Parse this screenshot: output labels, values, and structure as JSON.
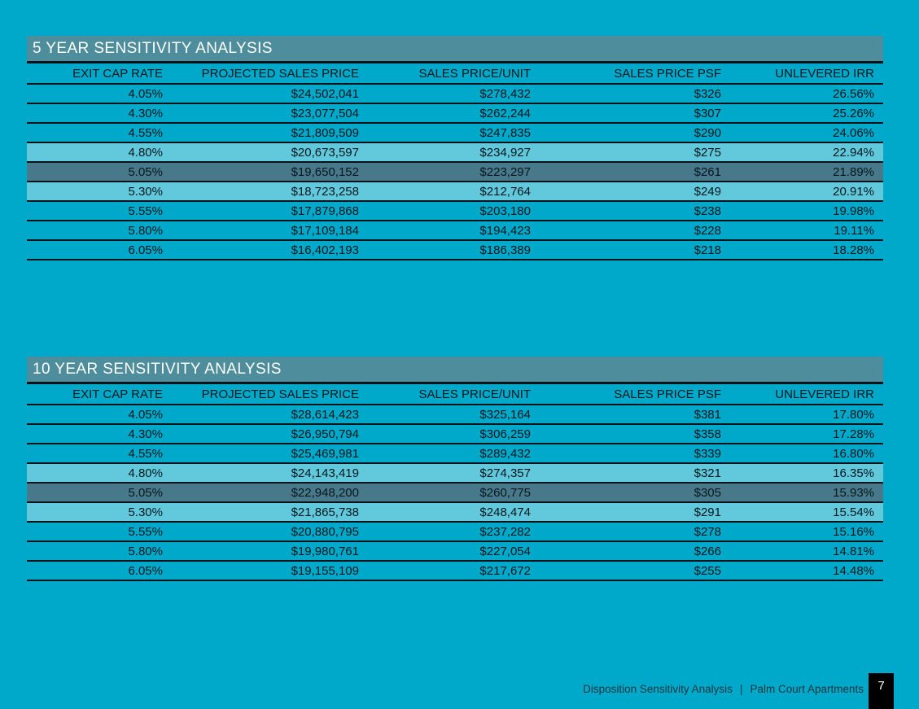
{
  "colors": {
    "background": "#00A9C9",
    "title_band": "#4E8E9C",
    "row_highlight_light": "#62C9DC",
    "row_highlight_dark": "#48798A",
    "line": "#06141A",
    "title_text": "#FFFFFF",
    "cell_text": "#04161D",
    "footer_text": "#163540",
    "page_badge_bg": "#000000",
    "page_badge_text": "#FFFFFF"
  },
  "columns": [
    "EXIT CAP RATE",
    "PROJECTED SALES PRICE",
    "SALES PRICE/UNIT",
    "SALES PRICE PSF",
    "UNLEVERED IRR"
  ],
  "tables": [
    {
      "title": "5 YEAR SENSITIVITY ANALYSIS",
      "rows": [
        {
          "cells": [
            "4.05%",
            "$24,502,041",
            "$278,432",
            "$326",
            "26.56%"
          ],
          "highlight": "none"
        },
        {
          "cells": [
            "4.30%",
            "$23,077,504",
            "$262,244",
            "$307",
            "25.26%"
          ],
          "highlight": "none"
        },
        {
          "cells": [
            "4.55%",
            "$21,809,509",
            "$247,835",
            "$290",
            "24.06%"
          ],
          "highlight": "none"
        },
        {
          "cells": [
            "4.80%",
            "$20,673,597",
            "$234,927",
            "$275",
            "22.94%"
          ],
          "highlight": "light"
        },
        {
          "cells": [
            "5.05%",
            "$19,650,152",
            "$223,297",
            "$261",
            "21.89%"
          ],
          "highlight": "dark"
        },
        {
          "cells": [
            "5.30%",
            "$18,723,258",
            "$212,764",
            "$249",
            "20.91%"
          ],
          "highlight": "light"
        },
        {
          "cells": [
            "5.55%",
            "$17,879,868",
            "$203,180",
            "$238",
            "19.98%"
          ],
          "highlight": "none"
        },
        {
          "cells": [
            "5.80%",
            "$17,109,184",
            "$194,423",
            "$228",
            "19.11%"
          ],
          "highlight": "none"
        },
        {
          "cells": [
            "6.05%",
            "$16,402,193",
            "$186,389",
            "$218",
            "18.28%"
          ],
          "highlight": "none"
        }
      ]
    },
    {
      "title": "10 YEAR SENSITIVITY ANALYSIS",
      "rows": [
        {
          "cells": [
            "4.05%",
            "$28,614,423",
            "$325,164",
            "$381",
            "17.80%"
          ],
          "highlight": "none"
        },
        {
          "cells": [
            "4.30%",
            "$26,950,794",
            "$306,259",
            "$358",
            "17.28%"
          ],
          "highlight": "none"
        },
        {
          "cells": [
            "4.55%",
            "$25,469,981",
            "$289,432",
            "$339",
            "16.80%"
          ],
          "highlight": "none"
        },
        {
          "cells": [
            "4.80%",
            "$24,143,419",
            "$274,357",
            "$321",
            "16.35%"
          ],
          "highlight": "light"
        },
        {
          "cells": [
            "5.05%",
            "$22,948,200",
            "$260,775",
            "$305",
            "15.93%"
          ],
          "highlight": "dark"
        },
        {
          "cells": [
            "5.30%",
            "$21,865,738",
            "$248,474",
            "$291",
            "15.54%"
          ],
          "highlight": "light"
        },
        {
          "cells": [
            "5.55%",
            "$20,880,795",
            "$237,282",
            "$278",
            "15.16%"
          ],
          "highlight": "none"
        },
        {
          "cells": [
            "5.80%",
            "$19,980,761",
            "$227,054",
            "$266",
            "14.81%"
          ],
          "highlight": "none"
        },
        {
          "cells": [
            "6.05%",
            "$19,155,109",
            "$217,672",
            "$255",
            "14.48%"
          ],
          "highlight": "none"
        }
      ]
    }
  ],
  "footer": {
    "section_label": "Disposition Sensitivity Analysis",
    "separator": "|",
    "project_label": "Palm Court Apartments",
    "page_number": "7"
  }
}
